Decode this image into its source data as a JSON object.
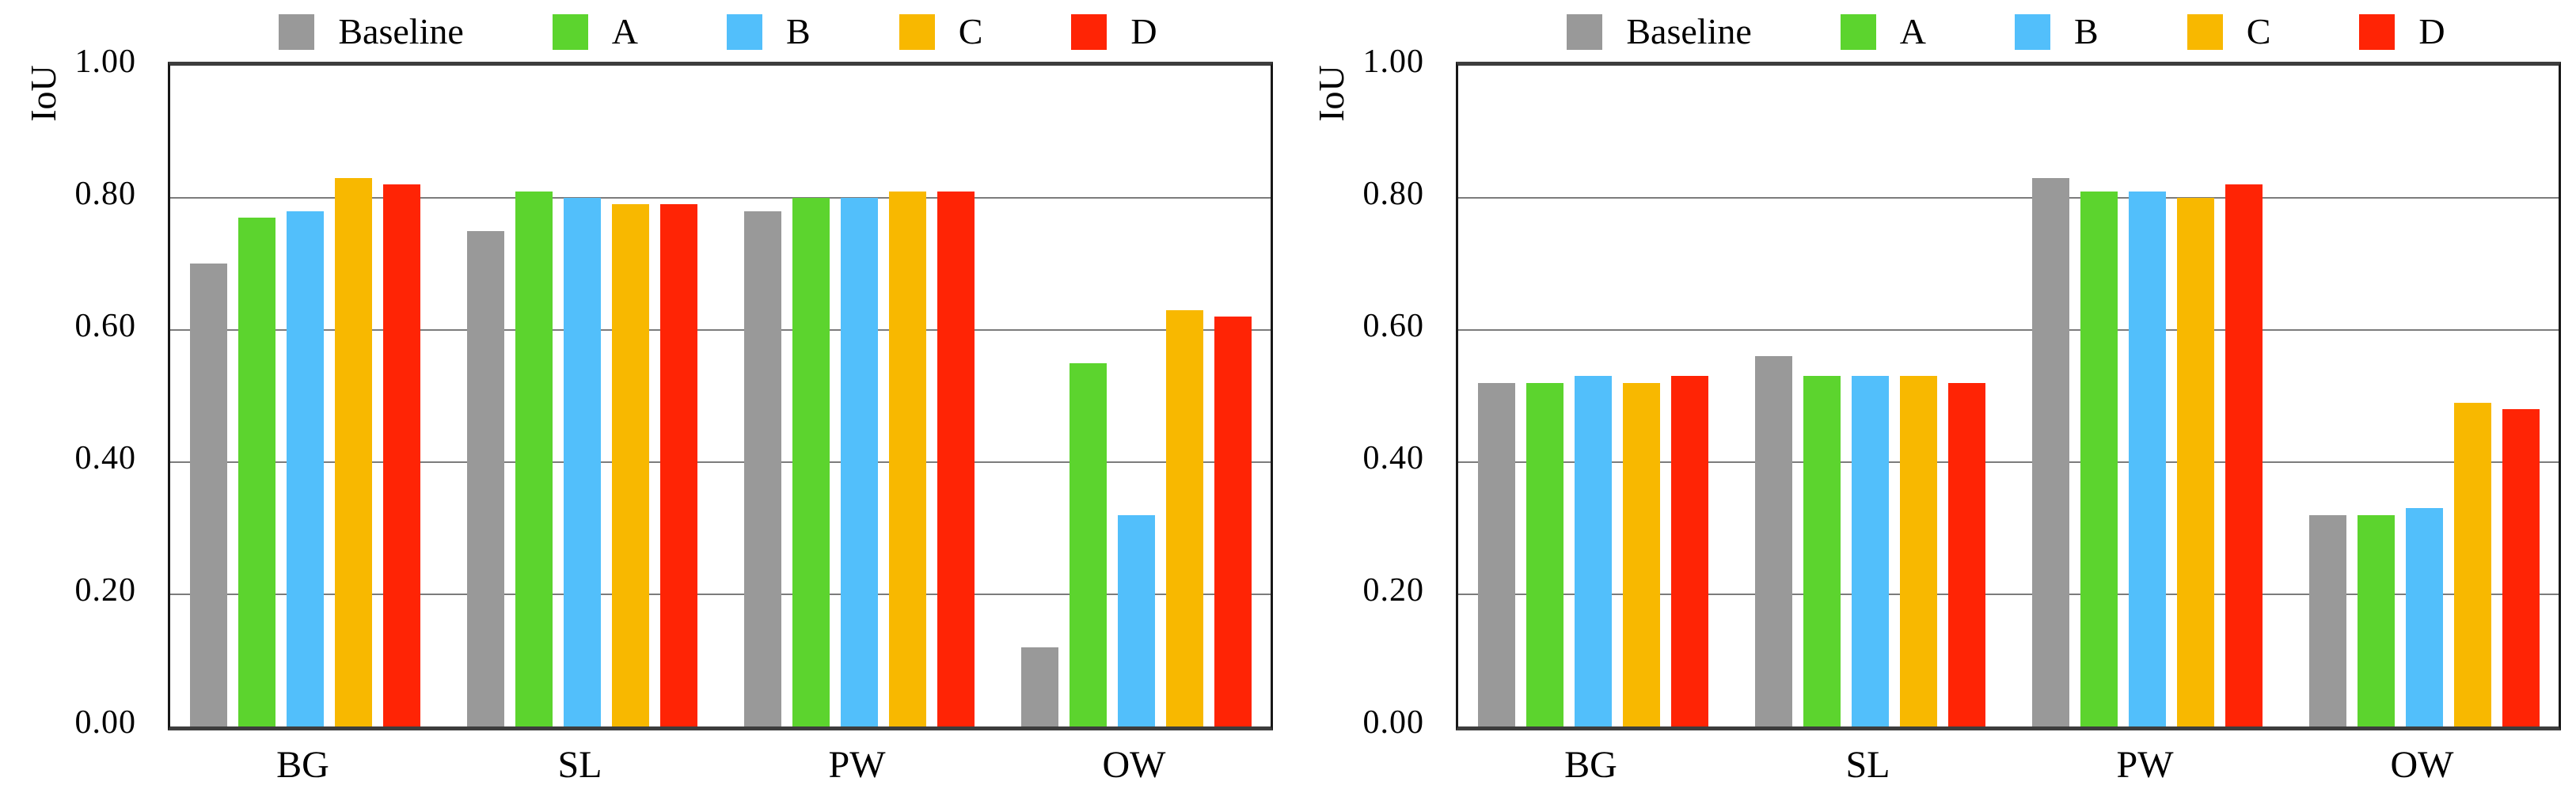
{
  "chart_data": [
    {
      "type": "bar",
      "title": "",
      "ylabel": "IoU",
      "xlabel": "",
      "categories": [
        "BG",
        "SL",
        "PW",
        "OW"
      ],
      "series": [
        {
          "name": "Baseline",
          "color": "#999999",
          "values": [
            0.7,
            0.75,
            0.78,
            0.12
          ]
        },
        {
          "name": "A",
          "color": "#5CD42E",
          "values": [
            0.77,
            0.81,
            0.8,
            0.55
          ]
        },
        {
          "name": "B",
          "color": "#52BFFB",
          "values": [
            0.78,
            0.8,
            0.8,
            0.32
          ]
        },
        {
          "name": "C",
          "color": "#F8B800",
          "values": [
            0.83,
            0.79,
            0.81,
            0.63
          ]
        },
        {
          "name": "D",
          "color": "#FF2405",
          "values": [
            0.82,
            0.79,
            0.81,
            0.62
          ]
        }
      ],
      "ylim": [
        0.0,
        1.0
      ],
      "yticks": [
        "0.00",
        "0.20",
        "0.40",
        "0.60",
        "0.80",
        "1.00"
      ],
      "grid": true,
      "legend_position": "top"
    },
    {
      "type": "bar",
      "title": "",
      "ylabel": "IoU",
      "xlabel": "",
      "categories": [
        "BG",
        "SL",
        "PW",
        "OW"
      ],
      "series": [
        {
          "name": "Baseline",
          "color": "#999999",
          "values": [
            0.52,
            0.56,
            0.83,
            0.32
          ]
        },
        {
          "name": "A",
          "color": "#5CD42E",
          "values": [
            0.52,
            0.53,
            0.81,
            0.32
          ]
        },
        {
          "name": "B",
          "color": "#52BFFB",
          "values": [
            0.53,
            0.53,
            0.81,
            0.33
          ]
        },
        {
          "name": "C",
          "color": "#F8B800",
          "values": [
            0.52,
            0.53,
            0.8,
            0.49
          ]
        },
        {
          "name": "D",
          "color": "#FF2405",
          "values": [
            0.53,
            0.52,
            0.82,
            0.48
          ]
        }
      ],
      "ylim": [
        0.0,
        1.0
      ],
      "yticks": [
        "0.00",
        "0.20",
        "0.40",
        "0.60",
        "0.80",
        "1.00"
      ],
      "grid": true,
      "legend_position": "top"
    }
  ]
}
